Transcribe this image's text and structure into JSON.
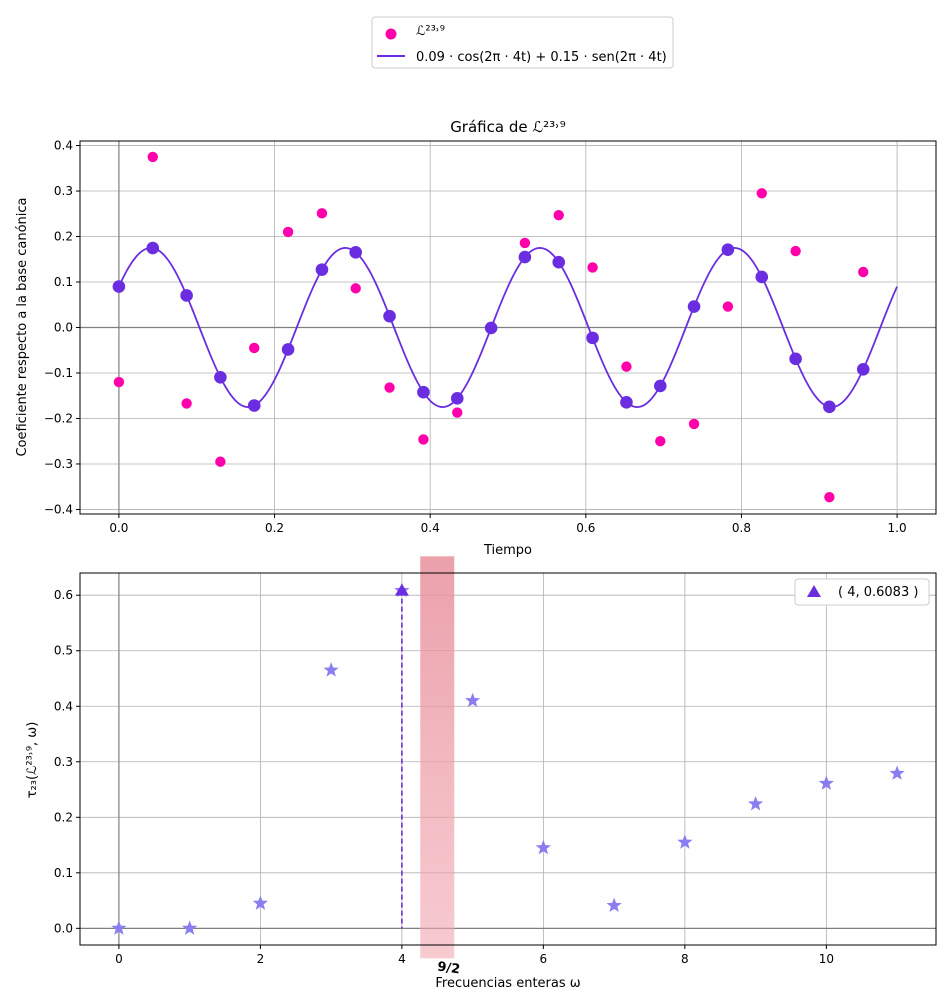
{
  "colors": {
    "signal_points": "#ff00aa",
    "model_line": "#6a2ee0",
    "sample_points": "#6a2ee0",
    "spectrum_stars": "#8a7df0",
    "peak_marker": "#6a2ee0",
    "annotation": "#e0455a",
    "grid": "#b0b0b0",
    "axis_zero": "#808080"
  },
  "top_legend": {
    "signal_label": "ℒ²³˒⁹",
    "model_label": "0.09 · cos(2π · 4t) + 0.15 · sen(2π · 4t)"
  },
  "chart_data": [
    {
      "type": "scatter",
      "title": "Gráfica de ℒ²³˒⁹",
      "xlabel": "Tiempo",
      "ylabel": "Coeficiente respecto a la base canónica",
      "xlim": [
        -0.05,
        1.05
      ],
      "ylim": [
        -0.41,
        0.41
      ],
      "xticks": [
        0.0,
        0.2,
        0.4,
        0.6,
        0.8,
        1.0
      ],
      "xtick_labels": [
        "0.0",
        "0.2",
        "0.4",
        "0.6",
        "0.8",
        "1.0"
      ],
      "yticks": [
        -0.4,
        -0.3,
        -0.2,
        -0.1,
        0.0,
        0.1,
        0.2,
        0.3,
        0.4
      ],
      "ytick_labels": [
        "−0.4",
        "−0.3",
        "−0.2",
        "−0.1",
        "0.0",
        "0.1",
        "0.2",
        "0.3",
        "0.4"
      ],
      "grid": true,
      "series": [
        {
          "name": "ℒ²³˒⁹",
          "kind": "points",
          "x": [
            0.0,
            0.0435,
            0.087,
            0.1304,
            0.1739,
            0.2174,
            0.2609,
            0.3043,
            0.3478,
            0.3913,
            0.4348,
            0.4783,
            0.5217,
            0.5652,
            0.6087,
            0.6522,
            0.6957,
            0.7391,
            0.7826,
            0.8261,
            0.8696,
            0.913,
            0.9565
          ],
          "y": [
            -0.12,
            0.375,
            -0.167,
            -0.295,
            -0.045,
            0.21,
            0.251,
            0.086,
            -0.132,
            -0.246,
            -0.187,
            0.001,
            0.186,
            0.247,
            0.132,
            -0.086,
            -0.25,
            -0.212,
            0.046,
            0.295,
            0.168,
            -0.373,
            0.122
          ]
        },
        {
          "name": "0.09 · cos(2π · 4t) + 0.15 · sen(2π · 4t)",
          "kind": "line",
          "function": {
            "a_cos": 0.09,
            "b_sin": 0.15,
            "frequency": 4
          },
          "x_range": [
            0,
            1
          ]
        },
        {
          "kind": "samples",
          "x": [
            0.0,
            0.0435,
            0.087,
            0.1304,
            0.1739,
            0.2174,
            0.2609,
            0.3043,
            0.3478,
            0.3913,
            0.4348,
            0.4783,
            0.5217,
            0.5652,
            0.6087,
            0.6522,
            0.6957,
            0.7391,
            0.7826,
            0.8261,
            0.8696,
            0.913,
            0.9565
          ]
        }
      ]
    },
    {
      "type": "scatter",
      "title": "",
      "xlabel": "Frecuencias enteras ω",
      "ylabel": "τ₂₃(ℒ²³˒⁹, ω)",
      "xlim": [
        -0.55,
        11.55
      ],
      "ylim": [
        -0.03,
        0.64
      ],
      "xticks": [
        0,
        2,
        4,
        6,
        8,
        10
      ],
      "xtick_labels": [
        "0",
        "2",
        "4",
        "6",
        "8",
        "10"
      ],
      "yticks": [
        0.0,
        0.1,
        0.2,
        0.3,
        0.4,
        0.5,
        0.6
      ],
      "ytick_labels": [
        "0.0",
        "0.1",
        "0.2",
        "0.3",
        "0.4",
        "0.5",
        "0.6"
      ],
      "grid": true,
      "legend": "top-right",
      "series": [
        {
          "kind": "stars",
          "x": [
            0,
            1,
            2,
            3,
            4,
            5,
            6,
            7,
            8,
            9,
            10,
            11
          ],
          "y": [
            0.0,
            0.0,
            0.045,
            0.465,
            0.6083,
            0.41,
            0.145,
            0.041,
            0.155,
            0.224,
            0.261,
            0.279
          ]
        },
        {
          "name": "( 4, 0.6083 )",
          "kind": "peak",
          "x": [
            4
          ],
          "y": [
            0.6083
          ]
        }
      ],
      "annotation": {
        "label": "9/2",
        "x": 4.5,
        "y_range": [
          0.0,
          0.67
        ]
      }
    }
  ]
}
